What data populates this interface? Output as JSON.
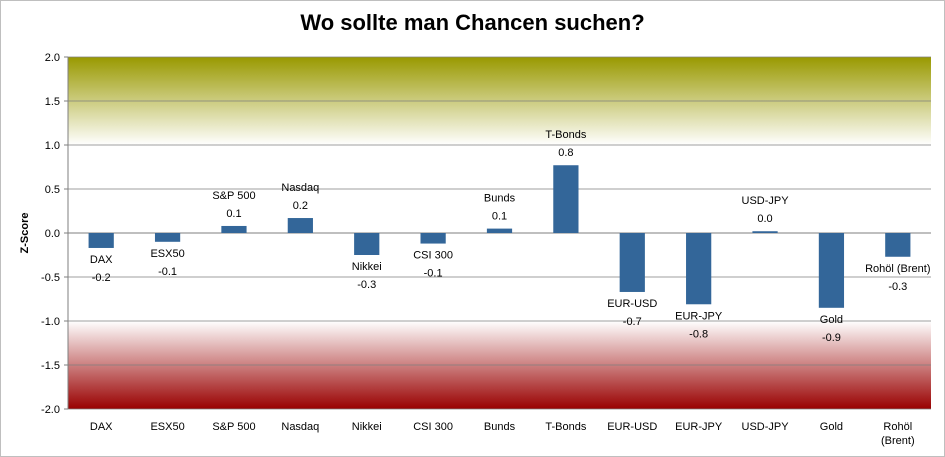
{
  "chart_data": {
    "type": "bar",
    "title": "Wo sollte man Chancen suchen?",
    "xlabel": "",
    "ylabel": "Z-Score",
    "ylim": [
      -2.0,
      2.0
    ],
    "yticks": [
      "2.0",
      "1.5",
      "1.0",
      "0.5",
      "0.0",
      "-0.5",
      "-1.0",
      "-1.5",
      "-2.0"
    ],
    "categories": [
      "DAX",
      "ESX50",
      "S&P 500",
      "Nasdaq",
      "Nikkei",
      "CSI 300",
      "Bunds",
      "T-Bonds",
      "EUR-USD",
      "EUR-JPY",
      "USD-JPY",
      "Gold",
      "Rohöl (Brent)"
    ],
    "category_lines": [
      [
        "DAX"
      ],
      [
        "ESX50"
      ],
      [
        "S&P 500"
      ],
      [
        "Nasdaq"
      ],
      [
        "Nikkei"
      ],
      [
        "CSI 300"
      ],
      [
        "Bunds"
      ],
      [
        "T-Bonds"
      ],
      [
        "EUR-USD"
      ],
      [
        "EUR-JPY"
      ],
      [
        "USD-JPY"
      ],
      [
        "Gold"
      ],
      [
        "Rohöl",
        "(Brent)"
      ]
    ],
    "values": [
      -0.17,
      -0.1,
      0.08,
      0.17,
      -0.25,
      -0.12,
      0.05,
      0.77,
      -0.67,
      -0.81,
      0.02,
      -0.85,
      -0.27
    ],
    "data_labels": [
      "-0.2",
      "-0.1",
      "0.1",
      "0.2",
      "-0.3",
      "-0.1",
      "0.1",
      "0.8",
      "-0.7",
      "-0.8",
      "0.0",
      "-0.9",
      "-0.3"
    ],
    "bar_color": "#336699",
    "bands": {
      "top_color": "#999900",
      "bottom_color": "#990000",
      "band_start": 1.0
    },
    "grid": true
  }
}
